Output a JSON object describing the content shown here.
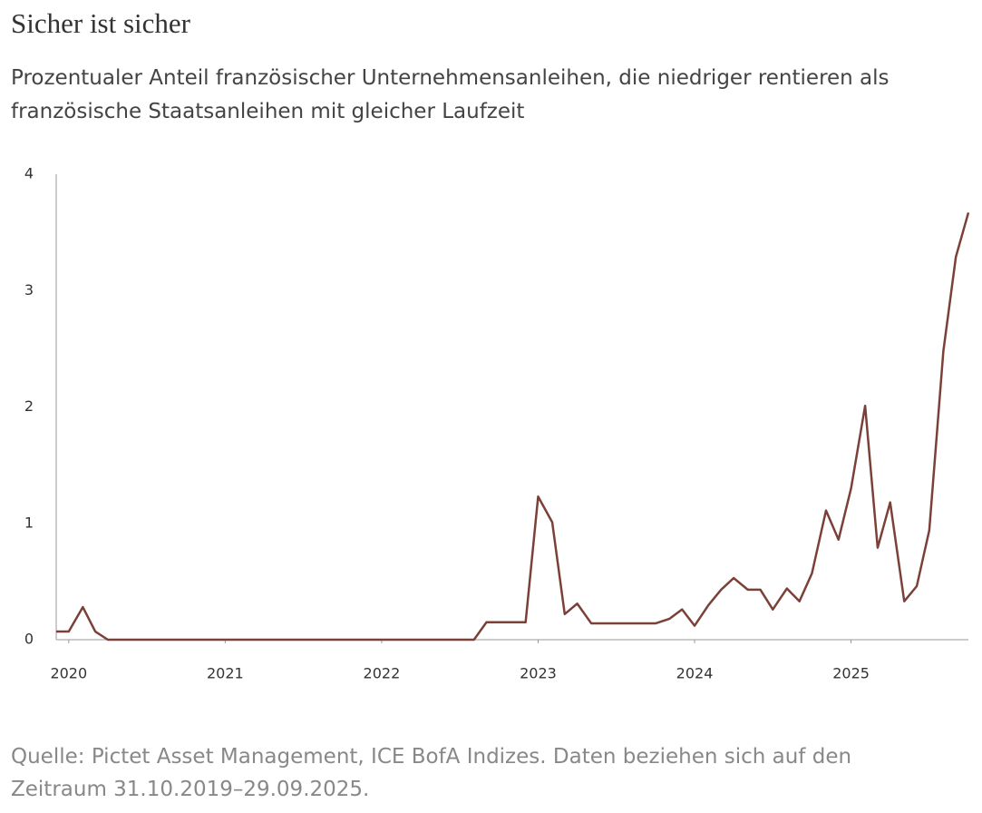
{
  "chart_data": {
    "type": "line",
    "title": "Sicher ist sicher",
    "subtitle": "Prozentualer Anteil französischer Unternehmensanleihen, die niedriger rentieren als französische Staatsanleihen mit gleicher Laufzeit",
    "source": "Quelle: Pictet Asset Management, ICE BofA Indizes. Daten beziehen sich auf den Zeitraum 31.10.2019–29.09.2025.",
    "x": [
      2019.92,
      2020.0,
      2020.09,
      2020.17,
      2020.25,
      2020.34,
      2020.42,
      2020.5,
      2020.59,
      2020.67,
      2020.75,
      2020.84,
      2020.92,
      2021.0,
      2021.09,
      2021.17,
      2021.25,
      2021.34,
      2021.42,
      2021.5,
      2021.59,
      2021.67,
      2021.75,
      2021.84,
      2021.92,
      2022.0,
      2022.09,
      2022.17,
      2022.25,
      2022.34,
      2022.42,
      2022.5,
      2022.59,
      2022.67,
      2022.75,
      2022.84,
      2022.92,
      2023.0,
      2023.09,
      2023.17,
      2023.25,
      2023.34,
      2023.42,
      2023.5,
      2023.59,
      2023.67,
      2023.75,
      2023.84,
      2023.92,
      2024.0,
      2024.09,
      2024.17,
      2024.25,
      2024.34,
      2024.42,
      2024.5,
      2024.59,
      2024.67,
      2024.75,
      2024.84,
      2024.92,
      2025.0,
      2025.09,
      2025.17,
      2025.25,
      2025.34,
      2025.42,
      2025.5,
      2025.59,
      2025.67,
      2025.75
    ],
    "series": [
      {
        "name": "Anteil",
        "color": "#7b4139",
        "values": [
          0.07,
          0.07,
          0.28,
          0.07,
          0,
          0,
          0,
          0,
          0,
          0,
          0,
          0,
          0,
          0,
          0,
          0,
          0,
          0,
          0,
          0,
          0,
          0,
          0,
          0,
          0,
          0,
          0,
          0,
          0,
          0,
          0,
          0,
          0,
          0.15,
          0.15,
          0.15,
          0.15,
          1.23,
          1.01,
          0.22,
          0.31,
          0.14,
          0.14,
          0.14,
          0.14,
          0.14,
          0.14,
          0.18,
          0.26,
          0.12,
          0.3,
          0.43,
          0.53,
          0.43,
          0.43,
          0.26,
          0.44,
          0.33,
          0.57,
          1.11,
          0.86,
          1.3,
          2.01,
          0.79,
          1.18,
          0.33,
          0.46,
          0.94,
          2.48,
          3.29,
          3.67
        ]
      }
    ],
    "xlim": [
      2019.92,
      2025.75
    ],
    "xticks": [
      2020,
      2021,
      2022,
      2023,
      2024,
      2025
    ],
    "ylim": [
      0,
      4
    ],
    "yticks": [
      0,
      1,
      2,
      3,
      4
    ]
  }
}
